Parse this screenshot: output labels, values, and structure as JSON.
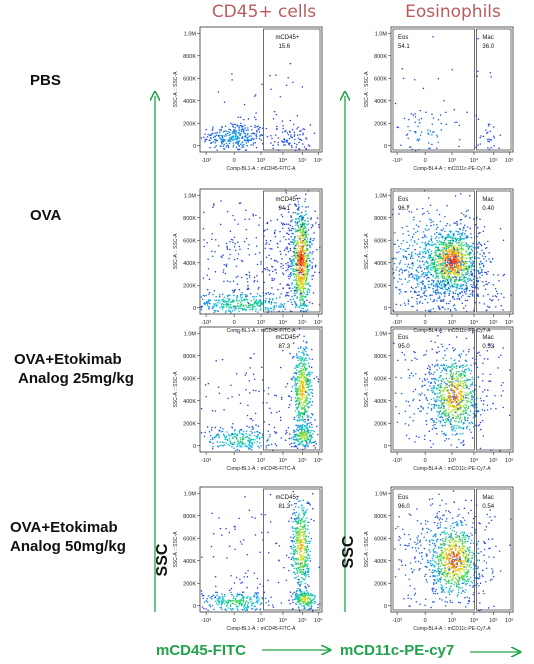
{
  "column_titles": [
    "CD45+ cells",
    "Eosinophils"
  ],
  "row_labels": [
    [
      "PBS"
    ],
    [
      "OVA"
    ],
    [
      "OVA+Etokimab",
      "Analog 25mg/kg"
    ],
    [
      "OVA+Etokimab",
      "Analog 50mg/kg"
    ]
  ],
  "ssc_label": "SSC",
  "bottom_labels": [
    "mCD45-FITC",
    "mCD11c-PE-cy7"
  ],
  "colors": {
    "column_title": "#b85c5c",
    "arrow": "#1ea34a",
    "bottom_label": "#1ea34a"
  },
  "chart_data": [
    {
      "type": "scatter",
      "panel": "CD45+ gating",
      "xlabel": "Comp-BL1-A :: mCD45-FITC-A",
      "ylabel": "SSC-A :: SSC-A",
      "y_ticks": [
        "0",
        "200K",
        "400K",
        "600K",
        "800K",
        "1.0M"
      ],
      "x_ticks": [
        "-10³",
        "0",
        "10³",
        "10⁴",
        "10⁵",
        "10⁶"
      ],
      "ylim": [
        0,
        1000000
      ],
      "gates": [
        {
          "row": "PBS",
          "name": "mCD45+",
          "value": "15.6"
        },
        {
          "row": "OVA",
          "name": "mCD45+",
          "value": "94.1"
        },
        {
          "row": "OVA+Etokimab Analog 25mg/kg",
          "name": "mCD45+",
          "value": "87.3"
        },
        {
          "row": "OVA+Etokimab Analog 50mg/kg",
          "name": "mCD45+",
          "value": "81.3"
        }
      ]
    },
    {
      "type": "scatter",
      "panel": "Eosinophil gating",
      "xlabel": "Comp-BL4-A :: mCD11c-PE-Cy7-A",
      "ylabel": "SSC-A :: SSC-A",
      "y_ticks": [
        "0",
        "200K",
        "400K",
        "600K",
        "800K",
        "1.0M"
      ],
      "x_ticks": [
        "-10³",
        "0",
        "10³",
        "10⁴",
        "10⁵",
        "10⁶"
      ],
      "ylim": [
        0,
        1000000
      ],
      "gates": [
        {
          "row": "PBS",
          "eos_name": "Eos",
          "eos": "54.1",
          "mac_name": "Mac",
          "mac": "36.0"
        },
        {
          "row": "OVA",
          "eos_name": "Eos",
          "eos": "96.7",
          "mac_name": "Mac",
          "mac": "0.40"
        },
        {
          "row": "OVA+Etokimab Analog 25mg/kg",
          "eos_name": "Eos",
          "eos": "95.0",
          "mac_name": "Mac",
          "mac": "0.53"
        },
        {
          "row": "OVA+Etokimab Analog 50mg/kg",
          "eos_name": "Eos",
          "eos": "96.0",
          "mac_name": "Mac",
          "mac": "0.54"
        }
      ]
    }
  ]
}
